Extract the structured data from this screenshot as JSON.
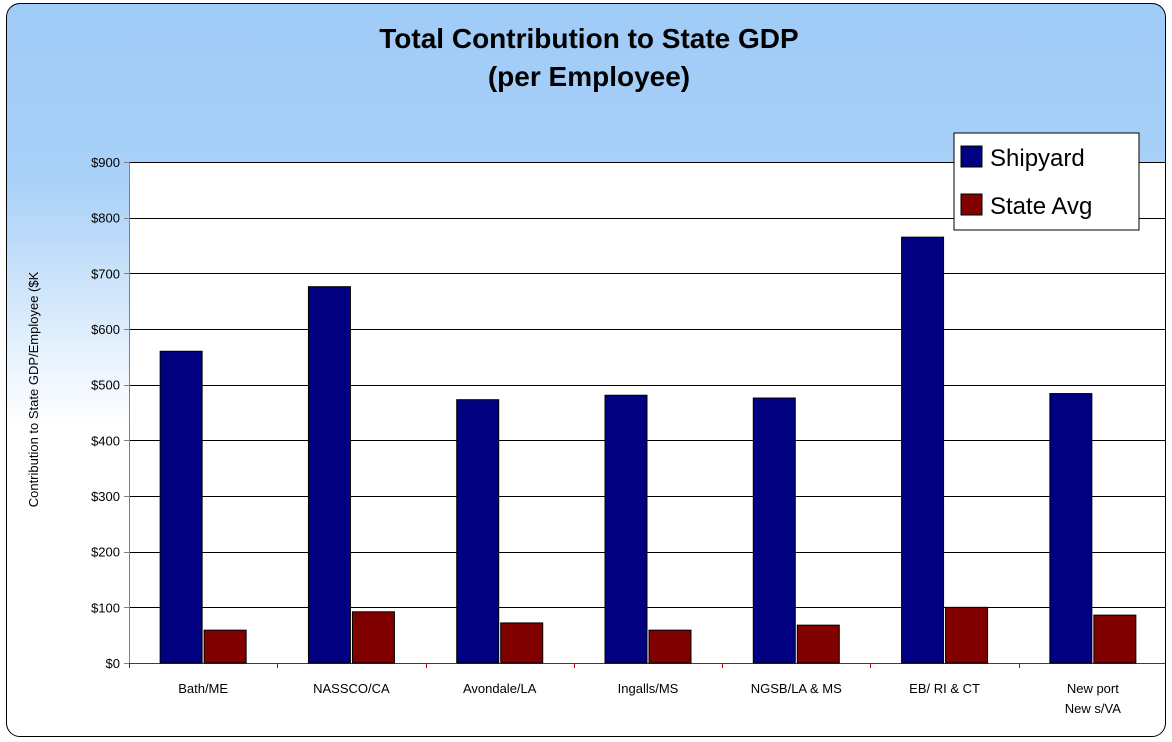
{
  "chart_data": {
    "type": "bar",
    "title_lines": [
      "Total Contribution to State GDP",
      "(per Employee)"
    ],
    "xlabel": "",
    "ylabel": "Contribution to State GDP/Employee ($K",
    "ylim": [
      0,
      900
    ],
    "y_ticks": [
      0,
      100,
      200,
      300,
      400,
      500,
      600,
      700,
      800,
      900
    ],
    "y_tick_labels": [
      "$0",
      "$100",
      "$200",
      "$300",
      "$400",
      "$500",
      "$600",
      "$700",
      "$800",
      "$900"
    ],
    "categories": [
      [
        "Bath/ME"
      ],
      [
        "NASSCO/CA"
      ],
      [
        "Avondale/LA"
      ],
      [
        "Ingalls/MS"
      ],
      [
        "NGSB/LA & MS"
      ],
      [
        "EB/ RI & CT"
      ],
      [
        "New port",
        "New s/VA"
      ]
    ],
    "series": [
      {
        "name": "Shipyard",
        "color": "#000080",
        "values": [
          560,
          676,
          473,
          481,
          476,
          765,
          484
        ]
      },
      {
        "name": "State Avg",
        "color": "#800000",
        "values": [
          59,
          92,
          72,
          59,
          68,
          100,
          86
        ]
      }
    ],
    "grid": true,
    "legend_position": "top-right"
  }
}
